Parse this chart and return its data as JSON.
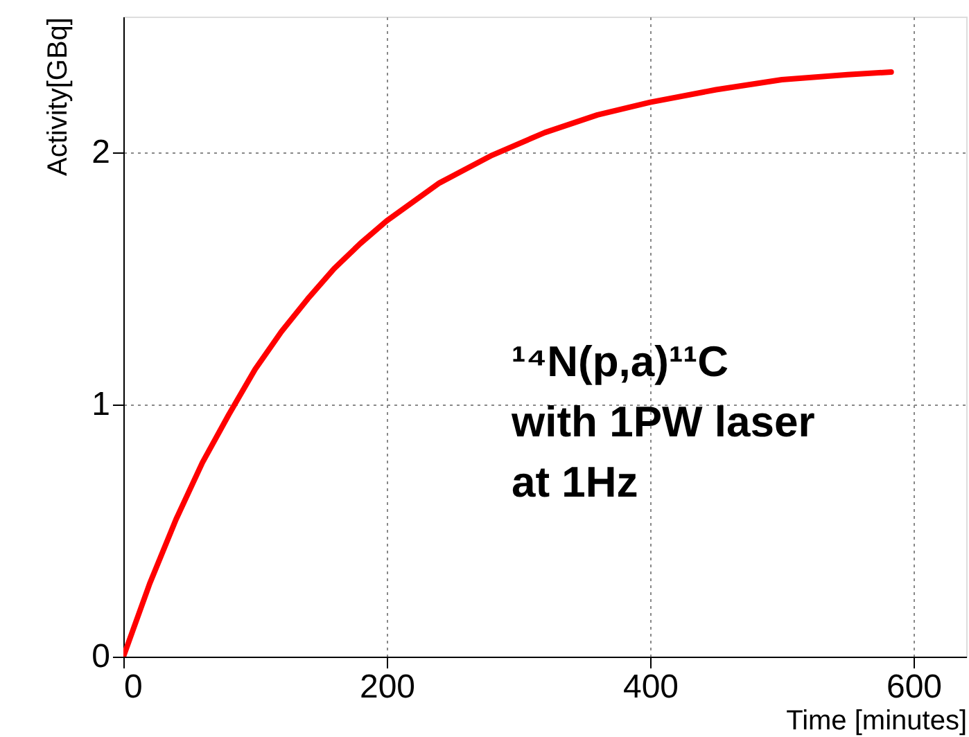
{
  "chart_data": {
    "type": "line",
    "xlabel": "Time [minutes]",
    "ylabel": "Activity[GBq]",
    "x": [
      0,
      20,
      40,
      60,
      80,
      100,
      120,
      140,
      160,
      180,
      200,
      240,
      280,
      320,
      360,
      400,
      450,
      500,
      550,
      583
    ],
    "series": [
      {
        "color": "#ff0000",
        "values": [
          0,
          0.29,
          0.545,
          0.77,
          0.96,
          1.14,
          1.29,
          1.42,
          1.54,
          1.64,
          1.73,
          1.88,
          1.99,
          2.08,
          2.15,
          2.2,
          2.25,
          2.29,
          2.31,
          2.32
        ]
      }
    ],
    "xlim": [
      0,
      640
    ],
    "ylim": [
      0,
      2.54
    ],
    "xticks": [
      0,
      200,
      400,
      600
    ],
    "yticks": [
      0,
      1,
      2
    ],
    "grid": true,
    "line_style": "solid",
    "marker": "none",
    "annotations": [
      "¹⁴N(p,a)¹¹C",
      "with 1PW laser",
      "at 1Hz"
    ]
  }
}
